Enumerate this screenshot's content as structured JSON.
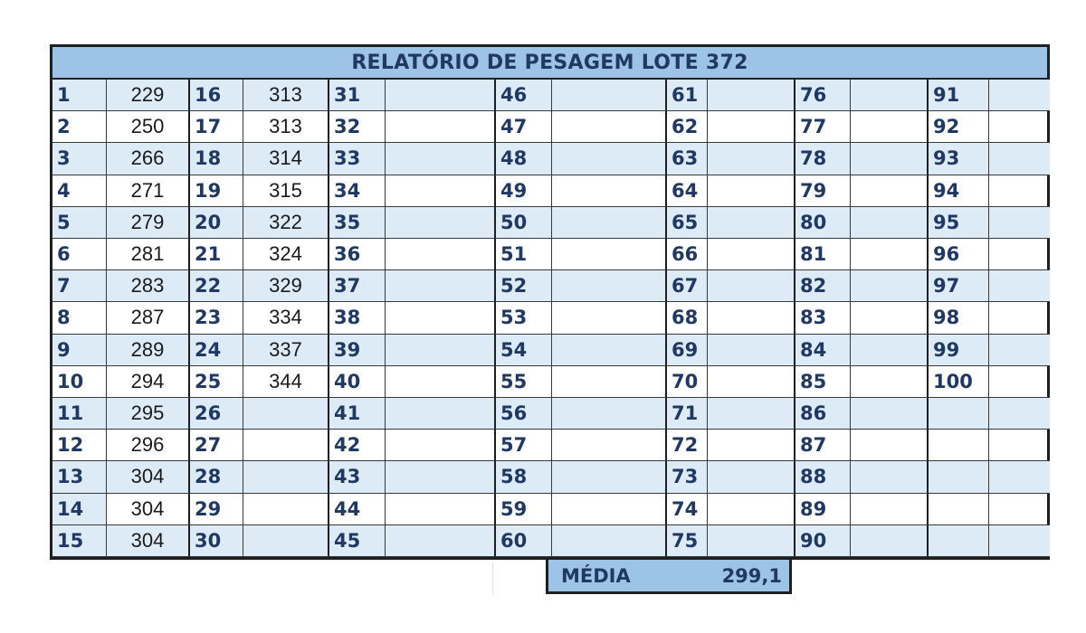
{
  "report": {
    "title": "RELATÓRIO DE PESAGEM LOTE 372",
    "colors": {
      "header_fill": "#9dc3e6",
      "row_shade": "#ddebf7",
      "label_text": "#1f3864"
    },
    "groups": [
      {
        "numbers": [
          "1",
          "2",
          "3",
          "4",
          "5",
          "6",
          "7",
          "8",
          "9",
          "10",
          "11",
          "12",
          "13",
          "14",
          "15"
        ],
        "values": [
          "229",
          "250",
          "266",
          "271",
          "279",
          "281",
          "283",
          "287",
          "289",
          "294",
          "295",
          "296",
          "304",
          "304",
          "304"
        ]
      },
      {
        "numbers": [
          "16",
          "17",
          "18",
          "19",
          "20",
          "21",
          "22",
          "23",
          "24",
          "25",
          "26",
          "27",
          "28",
          "29",
          "30"
        ],
        "values": [
          "313",
          "313",
          "314",
          "315",
          "322",
          "324",
          "329",
          "334",
          "337",
          "344",
          "",
          "",
          "",
          "",
          ""
        ]
      },
      {
        "numbers": [
          "31",
          "32",
          "33",
          "34",
          "35",
          "36",
          "37",
          "38",
          "39",
          "40",
          "41",
          "42",
          "43",
          "44",
          "45"
        ],
        "values": [
          "",
          "",
          "",
          "",
          "",
          "",
          "",
          "",
          "",
          "",
          "",
          "",
          "",
          "",
          ""
        ]
      },
      {
        "numbers": [
          "46",
          "47",
          "48",
          "49",
          "50",
          "51",
          "52",
          "53",
          "54",
          "55",
          "56",
          "57",
          "58",
          "59",
          "60"
        ],
        "values": [
          "",
          "",
          "",
          "",
          "",
          "",
          "",
          "",
          "",
          "",
          "",
          "",
          "",
          "",
          ""
        ]
      },
      {
        "numbers": [
          "61",
          "62",
          "63",
          "64",
          "65",
          "66",
          "67",
          "68",
          "69",
          "70",
          "71",
          "72",
          "73",
          "74",
          "75"
        ],
        "values": [
          "",
          "",
          "",
          "",
          "",
          "",
          "",
          "",
          "",
          "",
          "",
          "",
          "",
          "",
          ""
        ]
      },
      {
        "numbers": [
          "76",
          "77",
          "78",
          "79",
          "80",
          "81",
          "82",
          "83",
          "84",
          "85",
          "86",
          "87",
          "88",
          "89",
          "90"
        ],
        "values": [
          "",
          "",
          "",
          "",
          "",
          "",
          "",
          "",
          "",
          "",
          "",
          "",
          "",
          "",
          ""
        ]
      },
      {
        "numbers": [
          "91",
          "92",
          "93",
          "94",
          "95",
          "96",
          "97",
          "98",
          "99",
          "100",
          "",
          "",
          "",
          "",
          ""
        ],
        "values": [
          "",
          "",
          "",
          "",
          "",
          "",
          "",
          "",
          "",
          "",
          "",
          "",
          "",
          "",
          ""
        ]
      }
    ],
    "summary": {
      "label": "MÉDIA",
      "value": "299,1"
    }
  }
}
